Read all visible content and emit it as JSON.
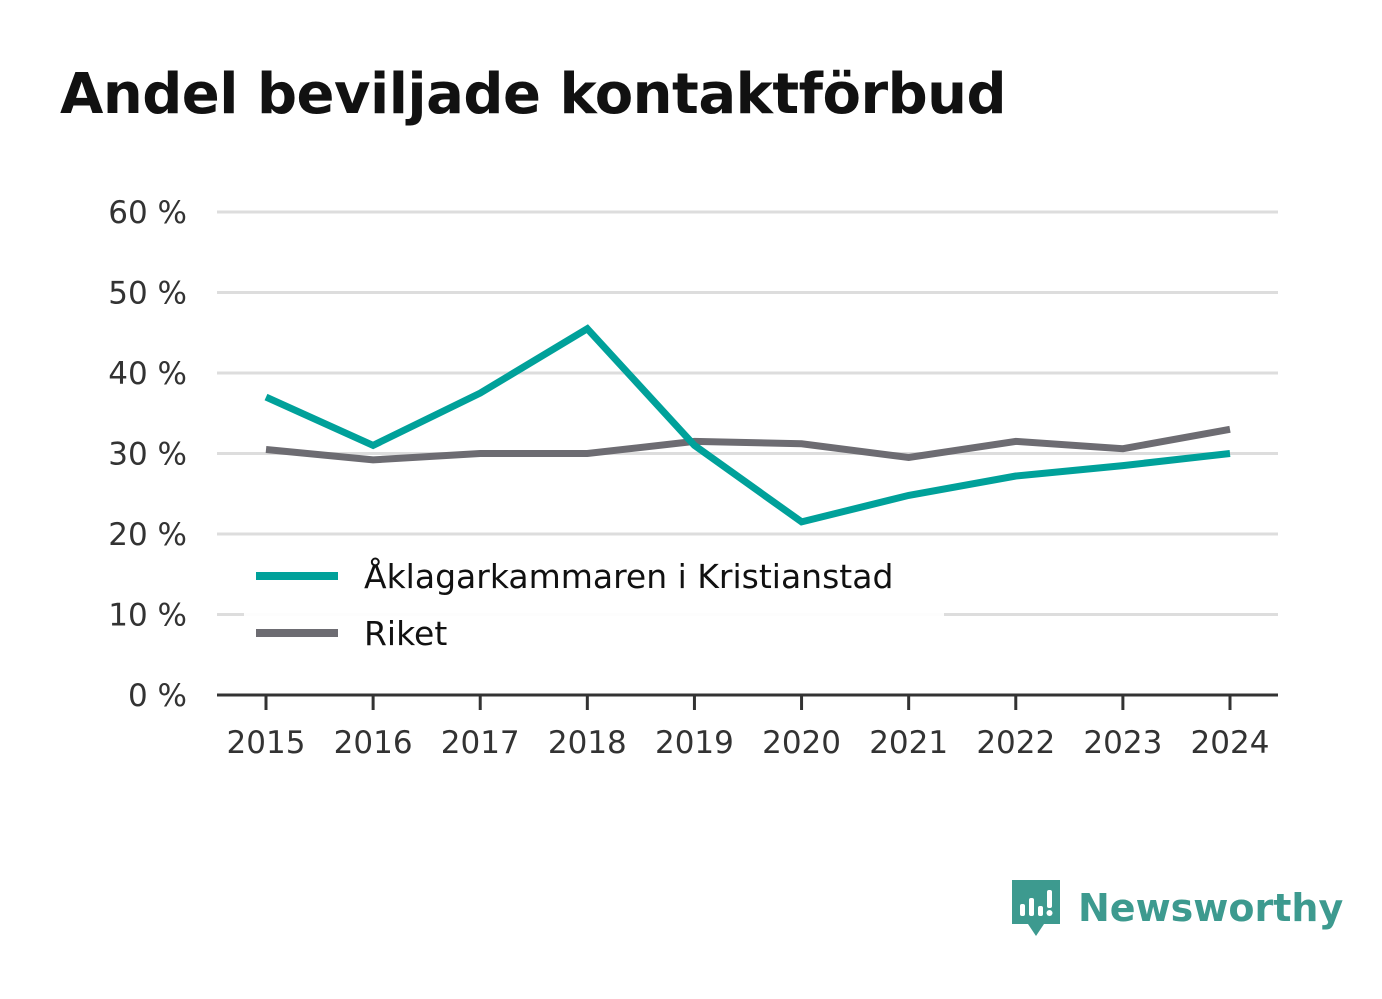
{
  "title": "Andel beviljade kontaktförbud",
  "brand": {
    "name": "Newsworthy",
    "icon": "newsworthy-logo-icon",
    "color": "#3d9a8f"
  },
  "chart_data": {
    "type": "line",
    "title": "Andel beviljade kontaktförbud",
    "x": [
      "2015",
      "2016",
      "2017",
      "2018",
      "2019",
      "2020",
      "2021",
      "2022",
      "2023",
      "2024"
    ],
    "ylim": [
      0,
      60
    ],
    "yticks": [
      0,
      10,
      20,
      30,
      40,
      50,
      60
    ],
    "ytick_labels": [
      "0 %",
      "10 %",
      "20 %",
      "30 %",
      "40 %",
      "50 %",
      "60 %"
    ],
    "grid": true,
    "legend_position": "bottom-left",
    "series": [
      {
        "name": "Åklagarkammaren i Kristianstad",
        "color": "#00a19a",
        "values": [
          37.0,
          31.0,
          37.5,
          45.5,
          31.0,
          21.5,
          24.8,
          27.2,
          28.5,
          30.0
        ]
      },
      {
        "name": "Riket",
        "color": "#6d6c72",
        "values": [
          30.5,
          29.2,
          30.0,
          30.0,
          31.5,
          31.2,
          29.5,
          31.5,
          30.6,
          33.0
        ]
      }
    ]
  }
}
